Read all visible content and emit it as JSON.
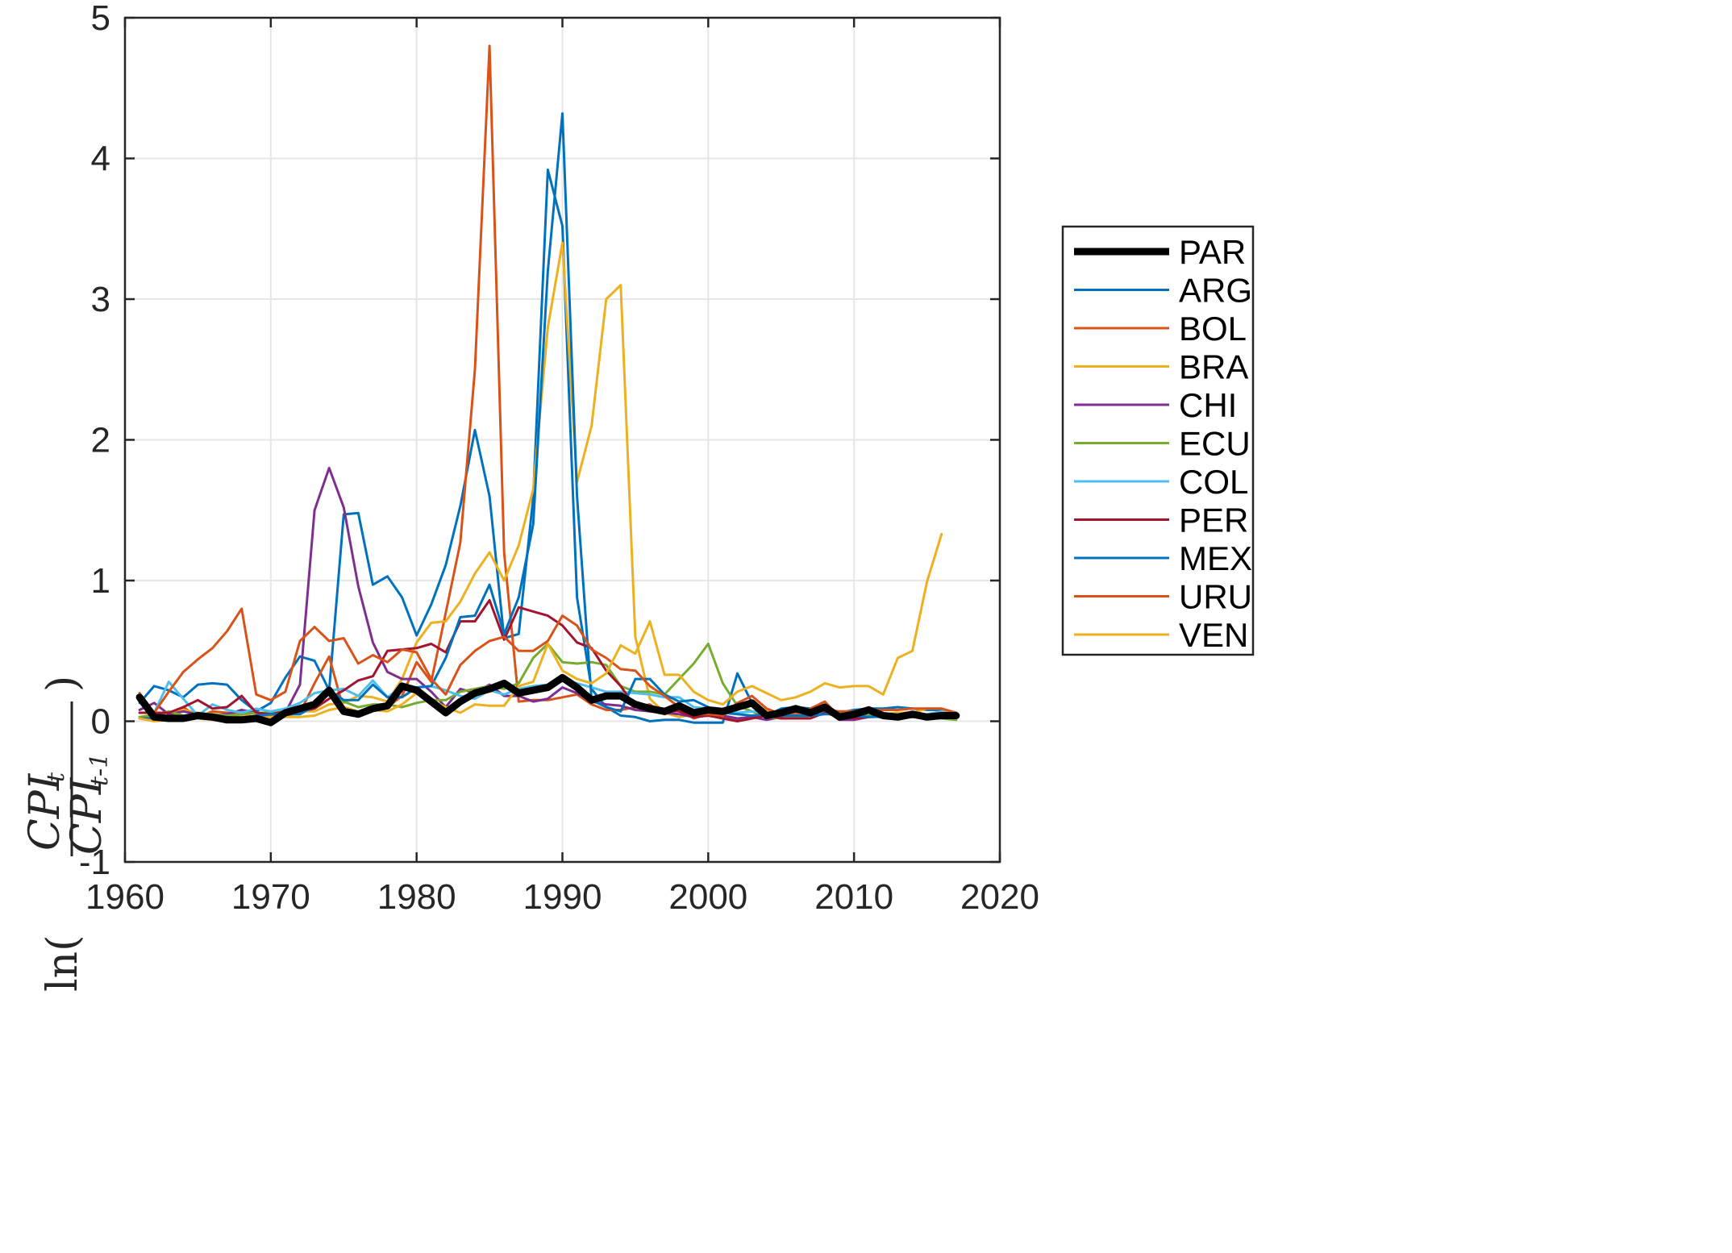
{
  "chart_data": {
    "type": "line",
    "title": "",
    "xlabel": "",
    "ylabel": {
      "prefix": "ln(",
      "numerator": "CPI",
      "numerator_sub": "t",
      "denominator": "CPI",
      "denominator_sub": "t-1",
      "suffix": ")"
    },
    "xlim": [
      1960,
      2020
    ],
    "ylim": [
      -1,
      5
    ],
    "xticks": [
      "1960",
      "1970",
      "1980",
      "1990",
      "2000",
      "2010",
      "2020"
    ],
    "yticks": [
      "-1",
      "0",
      "1",
      "2",
      "3",
      "4",
      "5"
    ],
    "grid": true,
    "legend_position": "outside-right",
    "x": [
      1961,
      1962,
      1963,
      1964,
      1965,
      1966,
      1967,
      1968,
      1969,
      1970,
      1971,
      1972,
      1973,
      1974,
      1975,
      1976,
      1977,
      1978,
      1979,
      1980,
      1981,
      1982,
      1983,
      1984,
      1985,
      1986,
      1987,
      1988,
      1989,
      1990,
      1991,
      1992,
      1993,
      1994,
      1995,
      1996,
      1997,
      1998,
      1999,
      2000,
      2001,
      2002,
      2003,
      2004,
      2005,
      2006,
      2007,
      2008,
      2009,
      2010,
      2011,
      2012,
      2013,
      2014,
      2015,
      2016,
      2017
    ],
    "series": [
      {
        "name": "PAR",
        "color": "#000000",
        "width": 9,
        "values": [
          0.17,
          0.03,
          0.02,
          0.02,
          0.04,
          0.03,
          0.01,
          0.01,
          0.02,
          -0.01,
          0.06,
          0.09,
          0.12,
          0.22,
          0.07,
          0.05,
          0.09,
          0.11,
          0.25,
          0.22,
          0.14,
          0.06,
          0.14,
          0.2,
          0.23,
          0.27,
          0.2,
          0.22,
          0.24,
          0.31,
          0.24,
          0.15,
          0.18,
          0.18,
          0.12,
          0.09,
          0.07,
          0.11,
          0.06,
          0.08,
          0.07,
          0.1,
          0.13,
          0.04,
          0.06,
          0.09,
          0.06,
          0.1,
          0.03,
          0.05,
          0.08,
          0.04,
          0.03,
          0.05,
          0.03,
          0.04,
          0.04
        ]
      },
      {
        "name": "ARG",
        "color": "#0072BD",
        "width": 3,
        "values": [
          0.13,
          0.25,
          0.22,
          0.17,
          0.26,
          0.27,
          0.26,
          0.15,
          0.07,
          0.13,
          0.31,
          0.46,
          0.43,
          0.22,
          1.47,
          1.48,
          0.97,
          1.03,
          0.88,
          0.61,
          0.83,
          1.11,
          1.53,
          2.07,
          1.6,
          0.59,
          0.62,
          1.59,
          3.92,
          3.52,
          0.88,
          0.23,
          0.1,
          0.04,
          0.03,
          0.0,
          0.01,
          0.01,
          -0.01,
          -0.01,
          -0.01,
          0.34,
          0.13,
          0.04,
          0.09,
          0.1,
          0.09,
          0.09,
          0.06,
          0.08,
          0.09,
          0.09,
          0.1,
          0.09,
          0.08,
          0.08,
          0.02
        ]
      },
      {
        "name": "BOL",
        "color": "#D95319",
        "width": 3,
        "values": [
          0.15,
          0.06,
          0.02,
          0.1,
          0.03,
          0.07,
          0.06,
          0.05,
          0.02,
          0.04,
          0.04,
          0.06,
          0.27,
          0.46,
          0.08,
          0.04,
          0.08,
          0.1,
          0.18,
          0.42,
          0.28,
          0.77,
          1.27,
          2.5,
          4.8,
          1.2,
          0.14,
          0.15,
          0.15,
          0.17,
          0.19,
          0.12,
          0.08,
          0.08,
          0.1,
          0.12,
          0.05,
          0.08,
          0.02,
          0.05,
          0.02,
          0.01,
          0.03,
          0.04,
          0.05,
          0.04,
          0.09,
          0.14,
          0.03,
          0.02,
          0.1,
          0.05,
          0.06,
          0.06,
          0.04,
          0.04,
          0.03
        ]
      },
      {
        "name": "BRA",
        "color": "#EDB120",
        "width": 3,
        "values": [
          0.03,
          0.05,
          0.06,
          0.08,
          0.06,
          0.05,
          0.04,
          0.04,
          0.06,
          0.06,
          0.05,
          0.07,
          0.07,
          0.12,
          0.13,
          0.18,
          0.17,
          0.14,
          0.3,
          0.56,
          0.7,
          0.71,
          0.85,
          1.05,
          1.2,
          1.0,
          1.25,
          1.65,
          2.8,
          3.4,
          1.7,
          2.1,
          3.0,
          3.1,
          0.6,
          0.16,
          0.06,
          0.03,
          0.05,
          0.07,
          0.07,
          0.08,
          0.14,
          0.07,
          0.07,
          0.04,
          0.04,
          0.06,
          0.05,
          0.05,
          0.06,
          0.05,
          0.06,
          0.06,
          0.09,
          0.09,
          0.03
        ]
      },
      {
        "name": "CHI",
        "color": "#7E2F8E",
        "width": 3,
        "values": [
          0.08,
          0.13,
          0.05,
          0.07,
          0.05,
          0.04,
          0.05,
          0.08,
          0.06,
          0.05,
          0.06,
          0.26,
          1.5,
          1.8,
          1.52,
          0.96,
          0.56,
          0.35,
          0.3,
          0.3,
          0.21,
          0.1,
          0.23,
          0.2,
          0.26,
          0.18,
          0.18,
          0.14,
          0.16,
          0.24,
          0.2,
          0.14,
          0.12,
          0.11,
          0.08,
          0.07,
          0.06,
          0.05,
          0.03,
          0.04,
          0.04,
          0.02,
          0.03,
          0.01,
          0.03,
          0.03,
          0.04,
          0.09,
          0.01,
          0.01,
          0.03,
          0.03,
          0.02,
          0.04,
          0.04,
          0.04,
          0.02
        ]
      },
      {
        "name": "ECU",
        "color": "#77AC30",
        "width": 3,
        "values": [
          0.03,
          0.04,
          0.07,
          0.04,
          0.04,
          0.05,
          0.04,
          0.05,
          0.06,
          0.06,
          0.08,
          0.08,
          0.13,
          0.21,
          0.14,
          0.1,
          0.12,
          0.12,
          0.1,
          0.13,
          0.15,
          0.15,
          0.21,
          0.23,
          0.25,
          0.23,
          0.27,
          0.45,
          0.55,
          0.42,
          0.41,
          0.42,
          0.4,
          0.25,
          0.21,
          0.21,
          0.19,
          0.3,
          0.41,
          0.55,
          0.27,
          0.11,
          0.07,
          0.03,
          0.02,
          0.03,
          0.02,
          0.08,
          0.05,
          0.04,
          0.04,
          0.05,
          0.03,
          0.04,
          0.04,
          0.02,
          0.01
        ]
      },
      {
        "name": "COL",
        "color": "#4DBEEE",
        "width": 3,
        "values": [
          0.06,
          0.06,
          0.28,
          0.16,
          0.04,
          0.12,
          0.08,
          0.06,
          0.09,
          0.07,
          0.09,
          0.13,
          0.2,
          0.22,
          0.23,
          0.18,
          0.29,
          0.17,
          0.25,
          0.24,
          0.25,
          0.22,
          0.18,
          0.16,
          0.22,
          0.19,
          0.23,
          0.25,
          0.26,
          0.29,
          0.27,
          0.24,
          0.21,
          0.21,
          0.2,
          0.19,
          0.17,
          0.17,
          0.1,
          0.09,
          0.08,
          0.06,
          0.07,
          0.06,
          0.05,
          0.04,
          0.05,
          0.07,
          0.04,
          0.02,
          0.03,
          0.03,
          0.02,
          0.03,
          0.05,
          0.07,
          0.04
        ]
      },
      {
        "name": "PER",
        "color": "#A2142F",
        "width": 3,
        "values": [
          0.06,
          0.06,
          0.06,
          0.1,
          0.15,
          0.09,
          0.1,
          0.18,
          0.06,
          0.05,
          0.07,
          0.07,
          0.09,
          0.16,
          0.22,
          0.29,
          0.32,
          0.5,
          0.51,
          0.52,
          0.55,
          0.49,
          0.71,
          0.71,
          0.86,
          0.58,
          0.81,
          0.78,
          0.75,
          0.68,
          0.56,
          0.52,
          0.36,
          0.25,
          0.1,
          0.11,
          0.08,
          0.07,
          0.03,
          0.04,
          0.02,
          0.0,
          0.02,
          0.04,
          0.02,
          0.02,
          0.02,
          0.06,
          0.03,
          0.02,
          0.03,
          0.04,
          0.03,
          0.03,
          0.03,
          0.04,
          0.03
        ]
      },
      {
        "name": "MEX",
        "color": "#0072BD",
        "width": 3,
        "values": [
          0.02,
          0.02,
          0.01,
          0.02,
          0.04,
          0.04,
          0.03,
          0.02,
          0.04,
          0.05,
          0.05,
          0.05,
          0.11,
          0.22,
          0.15,
          0.15,
          0.26,
          0.17,
          0.17,
          0.24,
          0.25,
          0.45,
          0.74,
          0.75,
          0.97,
          0.62,
          0.88,
          1.4,
          3.2,
          4.32,
          1.6,
          0.15,
          0.1,
          0.07,
          0.3,
          0.3,
          0.19,
          0.14,
          0.15,
          0.1,
          0.06,
          0.05,
          0.04,
          0.05,
          0.04,
          0.04,
          0.04,
          0.05,
          0.05,
          0.04,
          0.03,
          0.04,
          0.04,
          0.04,
          0.03,
          0.03,
          0.06
        ]
      },
      {
        "name": "URU",
        "color": "#D95319",
        "width": 3,
        "values": [
          0.2,
          0.06,
          0.21,
          0.35,
          0.44,
          0.52,
          0.64,
          0.8,
          0.19,
          0.15,
          0.21,
          0.57,
          0.67,
          0.57,
          0.59,
          0.41,
          0.47,
          0.42,
          0.51,
          0.49,
          0.3,
          0.19,
          0.4,
          0.5,
          0.57,
          0.6,
          0.5,
          0.5,
          0.57,
          0.75,
          0.68,
          0.51,
          0.45,
          0.37,
          0.36,
          0.25,
          0.18,
          0.1,
          0.05,
          0.05,
          0.04,
          0.13,
          0.18,
          0.09,
          0.05,
          0.06,
          0.08,
          0.08,
          0.07,
          0.07,
          0.08,
          0.08,
          0.08,
          0.09,
          0.09,
          0.09,
          0.06
        ]
      },
      {
        "name": "VEN",
        "color": "#EDB120",
        "width": 3,
        "values": [
          0.02,
          0.0,
          0.01,
          0.02,
          0.02,
          0.01,
          0.0,
          0.02,
          0.02,
          0.03,
          0.03,
          0.03,
          0.04,
          0.08,
          0.1,
          0.07,
          0.08,
          0.07,
          0.12,
          0.2,
          0.15,
          0.1,
          0.06,
          0.12,
          0.11,
          0.11,
          0.25,
          0.28,
          0.55,
          0.36,
          0.3,
          0.27,
          0.34,
          0.54,
          0.48,
          0.71,
          0.33,
          0.33,
          0.21,
          0.15,
          0.12,
          0.21,
          0.25,
          0.2,
          0.15,
          0.17,
          0.21,
          0.27,
          0.24,
          0.25,
          0.25,
          0.19,
          0.45,
          0.5,
          0.99,
          1.33,
          null
        ]
      }
    ]
  }
}
